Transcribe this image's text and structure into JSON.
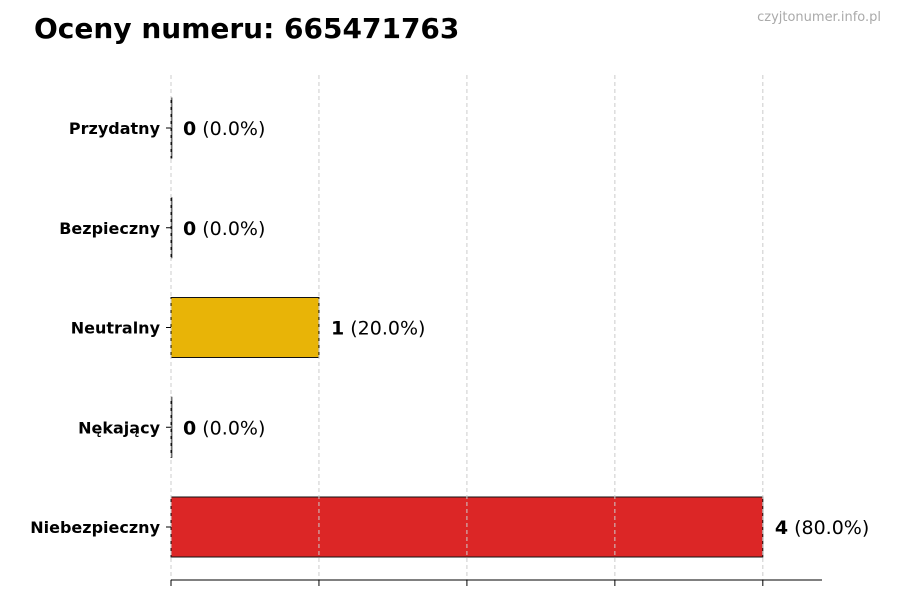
{
  "title": "Oceny numeru: 665471763",
  "watermark": "czyjtonumer.info.pl",
  "chart_data": {
    "type": "bar",
    "orientation": "horizontal",
    "categories": [
      "Przydatny",
      "Bezpieczny",
      "Neutralny",
      "Nękający",
      "Niebezpieczny"
    ],
    "values": [
      0,
      0,
      1,
      0,
      4
    ],
    "data_labels": [
      {
        "count": "0",
        "percent": "(0.0%)"
      },
      {
        "count": "0",
        "percent": "(0.0%)"
      },
      {
        "count": "1",
        "percent": "(20.0%)"
      },
      {
        "count": "0",
        "percent": "(0.0%)"
      },
      {
        "count": "4",
        "percent": "(80.0%)"
      }
    ],
    "colors": [
      "#2e7d32",
      "#1e88e5",
      "#e8b407",
      "#7b1fa2",
      "#dc2626"
    ],
    "xlim": [
      0,
      4.4
    ],
    "xticks": [
      0,
      1,
      2,
      3,
      4
    ],
    "xtick_labels_shown": false,
    "grid": "x dashed",
    "title": "Oceny numeru: 665471763",
    "xlabel": "",
    "ylabel": ""
  }
}
